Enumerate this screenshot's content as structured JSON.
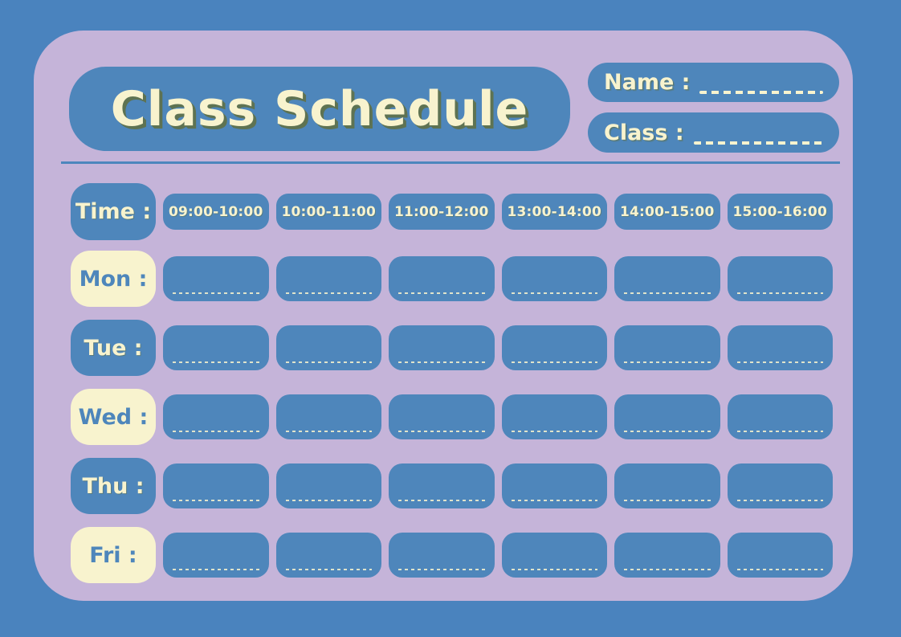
{
  "title": "Class Schedule",
  "header_fields": {
    "name_label": "Name :",
    "class_label": "Class :"
  },
  "schedule": {
    "time_label": "Time :",
    "time_slots": [
      "09:00-10:00",
      "10:00-11:00",
      "11:00-12:00",
      "13:00-14:00",
      "14:00-15:00",
      "15:00-16:00"
    ],
    "days": [
      {
        "label": "Mon :"
      },
      {
        "label": "Tue :"
      },
      {
        "label": "Wed :"
      },
      {
        "label": "Thu :"
      },
      {
        "label": "Fri :"
      }
    ]
  },
  "colors": {
    "background_blue": "#4A83BE",
    "card_lavender": "#C5B4D9",
    "chip_blue": "#4E86BB",
    "cream": "#F8F3CE",
    "title_shadow_olive": "#5E7352"
  }
}
